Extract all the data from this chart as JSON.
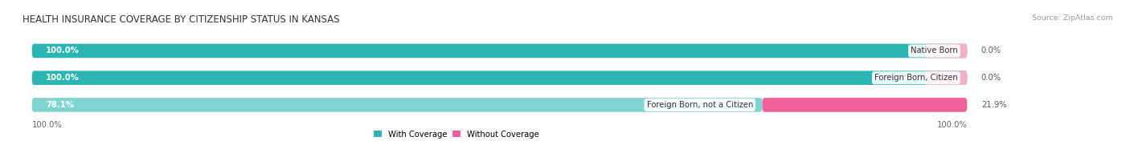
{
  "title": "HEALTH INSURANCE COVERAGE BY CITIZENSHIP STATUS IN KANSAS",
  "source": "Source: ZipAtlas.com",
  "categories": [
    "Native Born",
    "Foreign Born, Citizen",
    "Foreign Born, not a Citizen"
  ],
  "with_coverage": [
    100.0,
    100.0,
    78.1
  ],
  "without_coverage": [
    0.0,
    0.0,
    21.9
  ],
  "color_with_dark": "#2ab5b2",
  "color_with_light": "#82d4d2",
  "color_without_light": "#f4afc8",
  "color_without_dark": "#f0609a",
  "bar_bg_color": "#ebebeb",
  "legend_with": "With Coverage",
  "legend_without": "Without Coverage",
  "left_label": "100.0%",
  "right_label": "100.0%",
  "title_fontsize": 8.5,
  "label_fontsize": 7.2,
  "tick_fontsize": 7.2,
  "source_fontsize": 6.8,
  "value_inside_fontsize": 7.2,
  "value_outside_fontsize": 7.2
}
